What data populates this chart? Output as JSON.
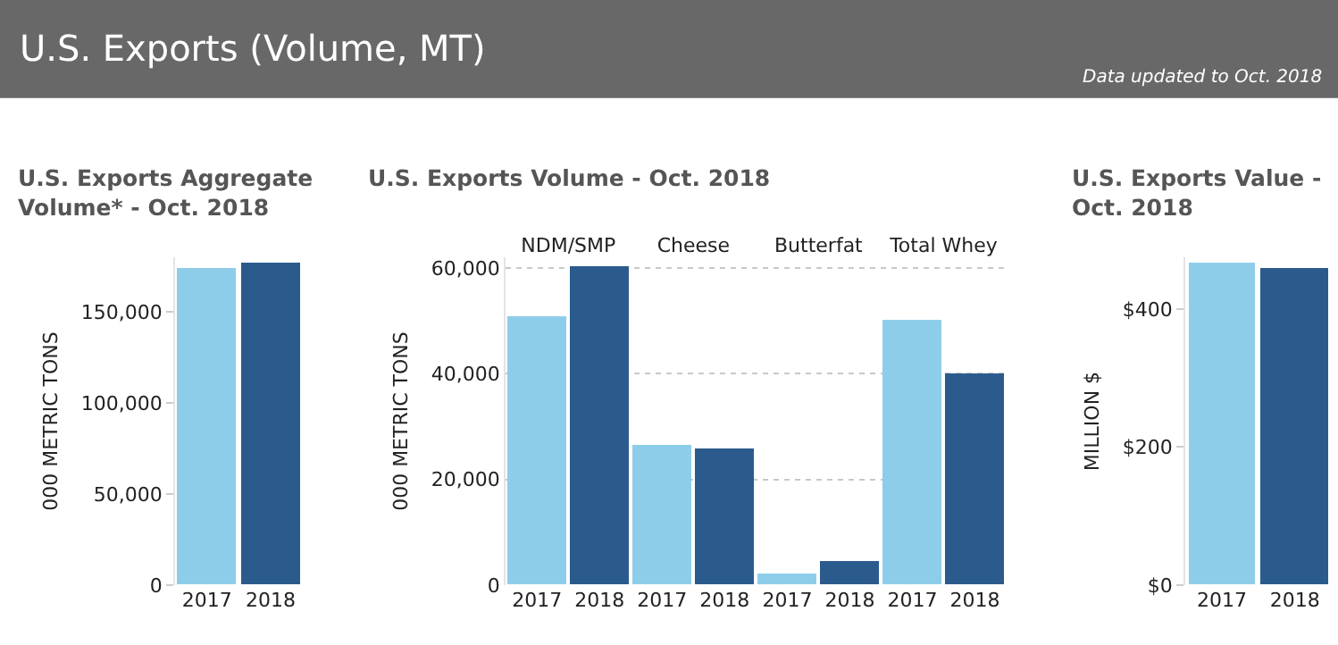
{
  "chart_data": [
    {
      "type": "other",
      "title": "U.S. Exports (Volume, MT)",
      "annotations": [
        "Data updated to Oct. 2018"
      ]
    },
    {
      "type": "bar",
      "title": "U.S. Exports Aggregate Volume* - Oct. 2018",
      "ylabel": "000 METRIC TONS",
      "categories": [
        "2017",
        "2018"
      ],
      "values": [
        174000,
        177000
      ],
      "colors": [
        "#8ecdea",
        "#2b5b8d"
      ],
      "ylim": [
        0,
        180000
      ],
      "yticks": [
        {
          "value": 0,
          "label": "0"
        },
        {
          "value": 50000,
          "label": "50,000"
        },
        {
          "value": 100000,
          "label": "100,000"
        },
        {
          "value": 150000,
          "label": "150,000"
        }
      ],
      "grid": false,
      "legend": false
    },
    {
      "type": "bar",
      "title": "U.S. Exports Volume - Oct. 2018",
      "ylabel": "000 METRIC TONS",
      "categories": [
        "NDM/SMP",
        "Cheese",
        "Butterfat",
        "Total Whey"
      ],
      "series": [
        {
          "name": "2017",
          "color": "#8ecdea",
          "values": [
            50700,
            26400,
            2100,
            50100
          ]
        },
        {
          "name": "2018",
          "color": "#2b5b8d",
          "values": [
            60300,
            25900,
            4500,
            40100
          ]
        }
      ],
      "ylim": [
        0,
        62000
      ],
      "yticks": [
        {
          "value": 0,
          "label": "0"
        },
        {
          "value": 20000,
          "label": "20,000"
        },
        {
          "value": 40000,
          "label": "40,000"
        },
        {
          "value": 60000,
          "label": "60,000"
        }
      ],
      "grid": "y",
      "legend": false
    },
    {
      "type": "bar",
      "title": "U.S. Exports Value - Oct. 2018",
      "ylabel": "MILLION $",
      "categories": [
        "2017",
        "2018"
      ],
      "values": [
        468,
        460
      ],
      "colors": [
        "#8ecdea",
        "#2b5b8d"
      ],
      "ylim": [
        0,
        475
      ],
      "yticks": [
        {
          "value": 0,
          "label": "$0"
        },
        {
          "value": 200,
          "label": "$200"
        },
        {
          "value": 400,
          "label": "$400"
        }
      ],
      "grid": false,
      "legend": false
    }
  ]
}
